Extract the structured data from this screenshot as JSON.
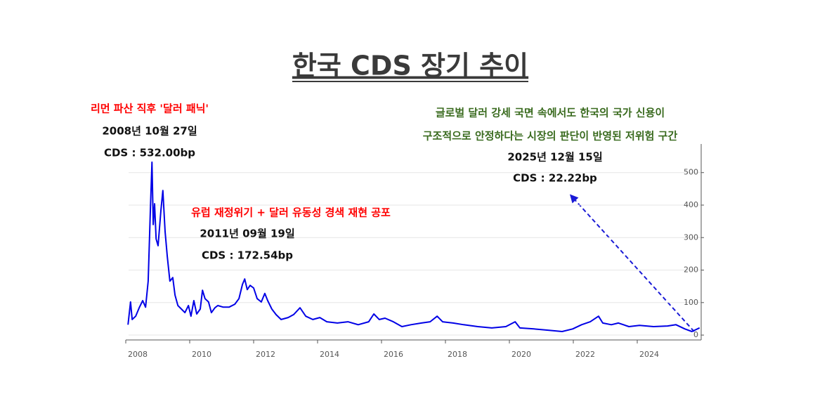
{
  "chart_data": {
    "type": "line",
    "title": "한국 CDS 장기 추이",
    "x": [
      2008.07,
      2008.15,
      2008.2,
      2008.31,
      2008.42,
      2008.53,
      2008.62,
      2008.7,
      2008.77,
      2008.82,
      2008.86,
      2008.9,
      2008.95,
      2009.01,
      2009.1,
      2009.16,
      2009.23,
      2009.3,
      2009.38,
      2009.47,
      2009.54,
      2009.63,
      2009.74,
      2009.85,
      2009.96,
      2010.04,
      2010.13,
      2010.22,
      2010.33,
      2010.4,
      2010.48,
      2010.59,
      2010.68,
      2010.79,
      2010.88,
      2011.05,
      2011.23,
      2011.41,
      2011.54,
      2011.65,
      2011.72,
      2011.8,
      2011.89,
      2012.0,
      2012.11,
      2012.24,
      2012.35,
      2012.44,
      2012.57,
      2012.7,
      2012.86,
      2013.08,
      2013.25,
      2013.45,
      2013.63,
      2013.85,
      2014.07,
      2014.29,
      2014.62,
      2014.95,
      2015.27,
      2015.6,
      2015.76,
      2015.93,
      2016.11,
      2016.37,
      2016.64,
      2016.92,
      2017.25,
      2017.52,
      2017.74,
      2017.91,
      2018.24,
      2018.57,
      2019.01,
      2019.45,
      2019.89,
      2020.18,
      2020.33,
      2020.77,
      2021.21,
      2021.65,
      2021.98,
      2022.26,
      2022.53,
      2022.79,
      2022.92,
      2023.19,
      2023.41,
      2023.74,
      2024.07,
      2024.51,
      2024.95,
      2025.21,
      2025.49,
      2025.71,
      2025.95
    ],
    "series": [
      {
        "color": "#0000e6",
        "values": [
          32,
          102,
          48,
          58,
          84,
          106,
          86,
          166,
          383,
          532,
          340,
          404,
          296,
          275,
          383,
          445,
          318,
          242,
          166,
          177,
          123,
          91,
          80,
          69,
          91,
          58,
          106,
          65,
          80,
          138,
          112,
          102,
          69,
          84,
          91,
          86,
          86,
          95,
          112,
          156,
          172.54,
          140,
          153,
          145,
          112,
          102,
          128,
          106,
          80,
          63,
          48,
          54,
          63,
          84,
          58,
          48,
          54,
          41,
          37,
          41,
          32,
          41,
          65,
          48,
          52,
          41,
          26,
          32,
          37,
          41,
          58,
          41,
          37,
          32,
          26,
          22,
          26,
          41,
          22,
          19,
          15,
          11,
          19,
          32,
          41,
          58,
          37,
          32,
          37,
          26,
          30,
          26,
          28,
          32,
          19,
          11,
          22.22
        ]
      }
    ],
    "xlim": [
      2008,
      2026
    ],
    "xticks": [
      2008,
      2010,
      2012,
      2014,
      2016,
      2018,
      2020,
      2022,
      2024
    ],
    "ylim": [
      -15,
      588
    ],
    "yticks": [
      0,
      100,
      200,
      300,
      400,
      500
    ],
    "grid": true,
    "annotations": [
      {
        "color": "#ff0000",
        "lines": [
          "리먼 파산 직후 '달러 패닉'"
        ]
      },
      {
        "color": "#111111",
        "lines": [
          "2008년 10월 27일",
          "CDS : 532.00bp"
        ]
      },
      {
        "color": "#ff0000",
        "lines": [
          "유럽 재정위기 + 달러 유동성 경색 재현 공포"
        ]
      },
      {
        "color": "#111111",
        "lines": [
          "2011년 09월 19일",
          "CDS : 172.54bp"
        ]
      },
      {
        "color": "#3a6b1f",
        "lines": [
          "글로벌 달러 강세 국면 속에서도 한국의 국가 신용이",
          "구조적으로 안정하다는 시장의 판단이 반영된 저위험 구간"
        ]
      },
      {
        "color": "#111111",
        "lines": [
          "2025년 12월 15일",
          "CDS : 22.22bp"
        ]
      }
    ]
  }
}
